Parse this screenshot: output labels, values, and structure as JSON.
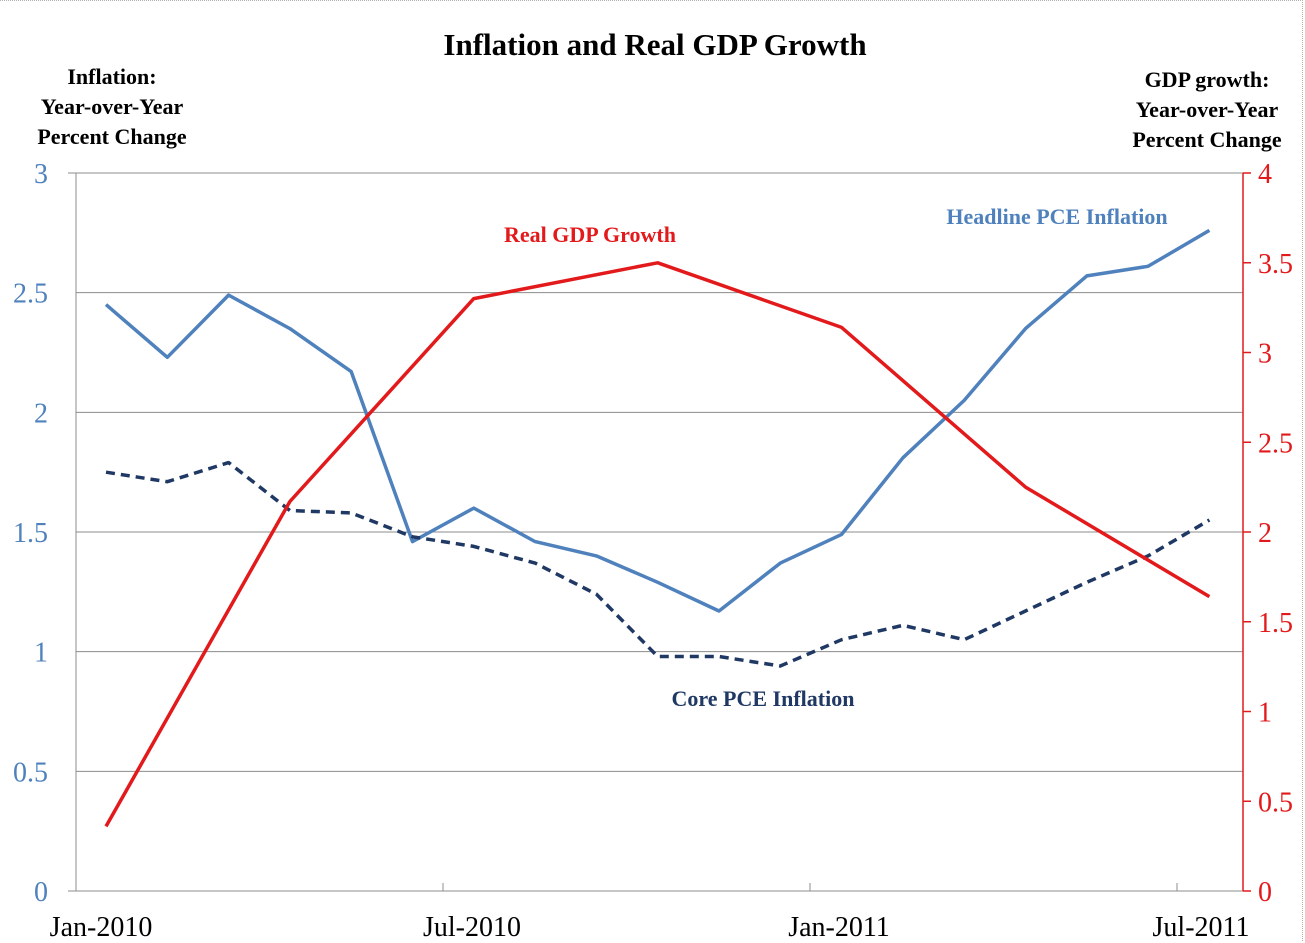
{
  "chart_data": {
    "type": "line",
    "title": "Inflation and Real GDP Growth",
    "left_axis_label": [
      "Inflation:",
      "Year-over-Year",
      "Percent Change"
    ],
    "right_axis_label": [
      "GDP growth:",
      "Year-over-Year",
      "Percent Change"
    ],
    "left_ylim": [
      0,
      3
    ],
    "left_ticks": [
      "0",
      "0.5",
      "1",
      "1.5",
      "2",
      "2.5",
      "3"
    ],
    "right_ylim": [
      0,
      4
    ],
    "right_ticks": [
      "0",
      "0.5",
      "1",
      "1.5",
      "2",
      "2.5",
      "3",
      "3.5",
      "4"
    ],
    "x_ticks": [
      "Jan-2010",
      "Jul-2010",
      "Jan-2011",
      "Jul-2011"
    ],
    "grid": "horizontal",
    "colors": {
      "headline": "#4f81bd",
      "core": "#1f3864",
      "gdp": "#e31a1c",
      "left_axis_text": "#4f81bd",
      "right_axis_text": "#e31a1c"
    },
    "series": [
      {
        "name": "Headline PCE Inflation",
        "axis": "left",
        "style": "solid",
        "x": [
          "2010-01",
          "2010-02",
          "2010-03",
          "2010-04",
          "2010-05",
          "2010-06",
          "2010-07",
          "2010-08",
          "2010-09",
          "2010-10",
          "2010-11",
          "2010-12",
          "2011-01",
          "2011-02",
          "2011-03",
          "2011-04",
          "2011-05",
          "2011-06",
          "2011-07"
        ],
        "values": [
          2.45,
          2.23,
          2.49,
          2.35,
          2.17,
          1.46,
          1.6,
          1.46,
          1.4,
          1.29,
          1.17,
          1.37,
          1.49,
          1.81,
          2.05,
          2.35,
          2.57,
          2.61,
          2.76
        ]
      },
      {
        "name": "Core PCE Inflation",
        "axis": "left",
        "style": "dashed",
        "x": [
          "2010-01",
          "2010-02",
          "2010-03",
          "2010-04",
          "2010-05",
          "2010-06",
          "2010-07",
          "2010-08",
          "2010-09",
          "2010-10",
          "2010-11",
          "2010-12",
          "2011-01",
          "2011-02",
          "2011-03",
          "2011-04",
          "2011-05",
          "2011-06",
          "2011-07"
        ],
        "values": [
          1.75,
          1.71,
          1.79,
          1.59,
          1.58,
          1.48,
          1.44,
          1.37,
          1.24,
          0.98,
          0.98,
          0.94,
          1.05,
          1.11,
          1.05,
          1.17,
          1.29,
          1.4,
          1.55
        ]
      },
      {
        "name": "Real GDP Growth",
        "axis": "right",
        "style": "solid",
        "x": [
          "2010-01",
          "2010-04",
          "2010-07",
          "2010-10",
          "2011-01",
          "2011-04",
          "2011-07"
        ],
        "values": [
          0.36,
          2.17,
          3.3,
          3.5,
          3.14,
          2.25,
          1.64
        ]
      }
    ]
  }
}
